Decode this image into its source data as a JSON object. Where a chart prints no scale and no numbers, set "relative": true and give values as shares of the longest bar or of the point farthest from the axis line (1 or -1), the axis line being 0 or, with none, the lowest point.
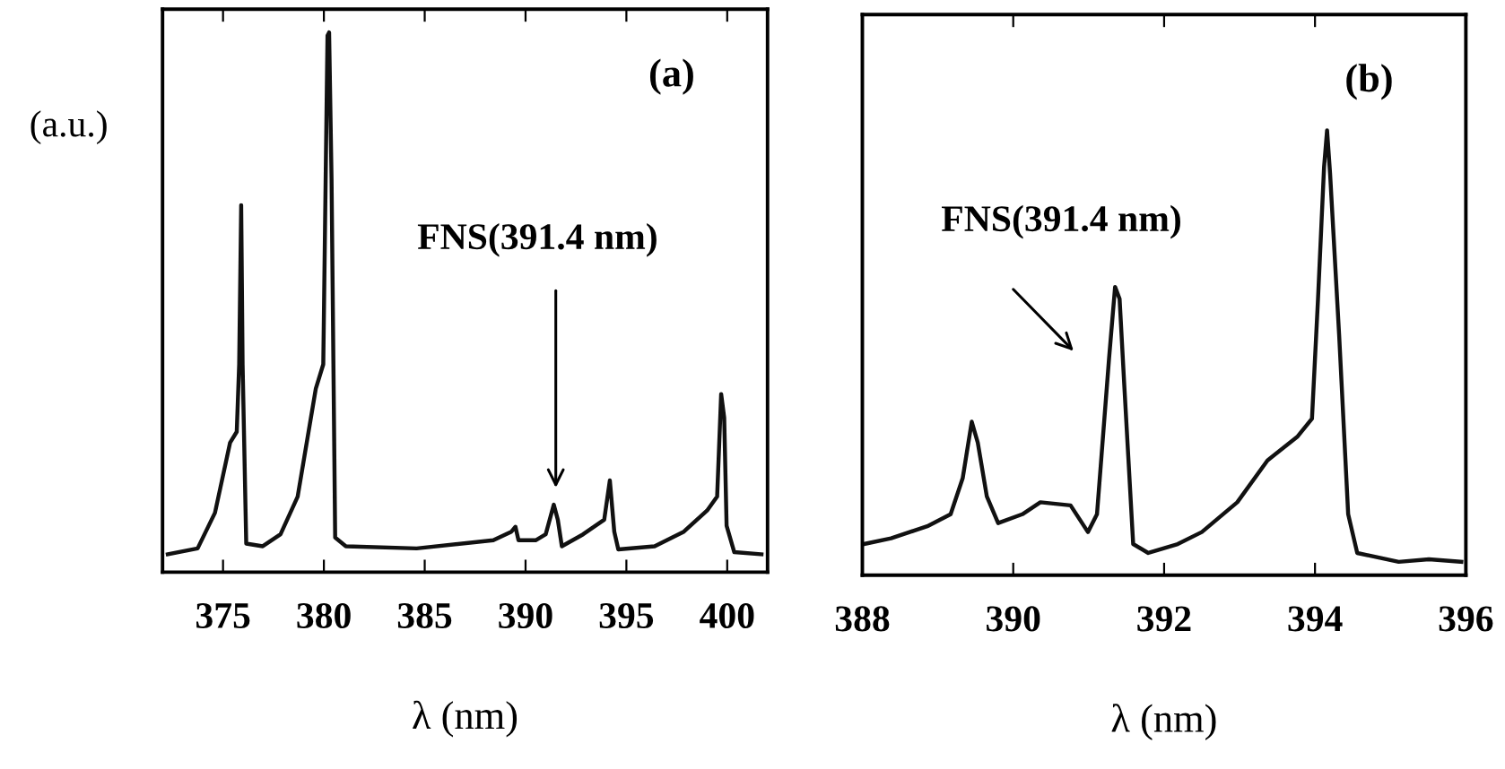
{
  "chart_data": [
    {
      "type": "line",
      "relative": true,
      "ylabel": "(a.u.)",
      "xlabel": "λ (nm)",
      "xlim": [
        372,
        402
      ],
      "xticks": [
        375,
        380,
        385,
        390,
        395,
        400
      ],
      "tick_labels": "x",
      "grid": false,
      "annotations": [
        "(a)",
        "FNS(391.4 nm)"
      ],
      "series": [
        {
          "color": "#111111",
          "x": [
            372.26,
            373.74,
            374.6,
            375.35,
            375.68,
            375.8,
            375.9,
            375.97,
            376.15,
            376.97,
            377.85,
            378.7,
            379.6,
            379.97,
            380.18,
            380.26,
            380.38,
            380.56,
            381.09,
            384.6,
            388.4,
            389.3,
            389.5,
            389.65,
            390.5,
            391.0,
            391.4,
            391.6,
            391.8,
            392.85,
            393.9,
            394.18,
            394.4,
            394.6,
            396.4,
            397.85,
            399.0,
            399.5,
            399.7,
            399.85,
            399.97,
            400.35,
            401.7
          ],
          "values": [
            0.033,
            0.044,
            0.11,
            0.24,
            0.26,
            0.385,
            0.68,
            0.385,
            0.053,
            0.048,
            0.07,
            0.14,
            0.34,
            0.385,
            0.994,
            1,
            0.73,
            0.064,
            0.048,
            0.044,
            0.059,
            0.075,
            0.084,
            0.059,
            0.059,
            0.07,
            0.125,
            0.097,
            0.048,
            0.07,
            0.097,
            0.17,
            0.075,
            0.042,
            0.048,
            0.075,
            0.114,
            0.14,
            0.33,
            0.286,
            0.086,
            0.037,
            0.033
          ]
        }
      ]
    },
    {
      "type": "line",
      "relative": true,
      "xlabel": "λ (nm)",
      "xlim": [
        388,
        396
      ],
      "xticks": [
        388,
        390,
        392,
        394,
        396
      ],
      "tick_labels": "x",
      "grid": false,
      "annotations": [
        "(b)",
        "FNS(391.4 nm)"
      ],
      "series": [
        {
          "color": "#111111",
          "x": [
            388.02,
            388.38,
            388.86,
            389.17,
            389.33,
            389.45,
            389.53,
            389.65,
            389.8,
            390.12,
            390.36,
            390.76,
            390.99,
            391.11,
            391.27,
            391.35,
            391.41,
            391.47,
            391.59,
            391.79,
            392.18,
            392.5,
            392.97,
            393.37,
            393.77,
            393.96,
            394.04,
            394.12,
            394.16,
            394.2,
            394.32,
            394.44,
            394.56,
            395.11,
            395.51,
            395.94
          ],
          "values": [
            0.07,
            0.083,
            0.11,
            0.137,
            0.218,
            0.345,
            0.298,
            0.177,
            0.117,
            0.137,
            0.164,
            0.157,
            0.097,
            0.137,
            0.487,
            0.648,
            0.621,
            0.433,
            0.07,
            0.05,
            0.07,
            0.097,
            0.164,
            0.258,
            0.312,
            0.352,
            0.621,
            0.917,
            1,
            0.903,
            0.54,
            0.137,
            0.05,
            0.03,
            0.036,
            0.03
          ]
        }
      ]
    }
  ]
}
